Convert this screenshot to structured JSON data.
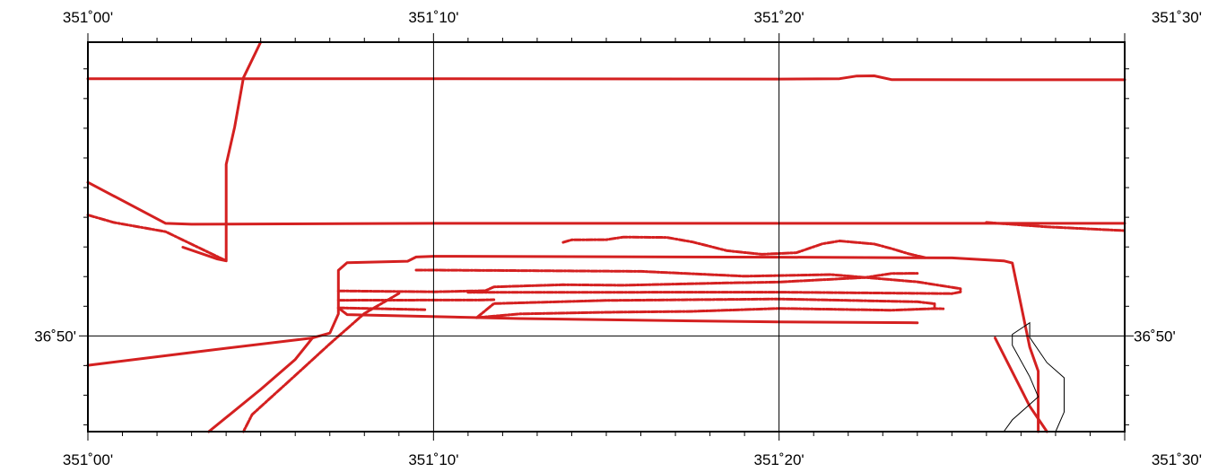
{
  "map": {
    "projection": "mercator",
    "frame_style": "fancy",
    "lon_range": [
      351.0,
      351.5
    ],
    "lat_range": [
      36.7795,
      36.9983
    ],
    "gridlines": {
      "lon": [
        351.1667,
        351.3333
      ],
      "lat": [
        36.8333
      ]
    },
    "top_labels": [
      {
        "lon": 351.0,
        "text": "351˚00'"
      },
      {
        "lon": 351.1667,
        "text": "351˚10'"
      },
      {
        "lon": 351.3333,
        "text": "351˚20'"
      },
      {
        "lon": 351.5,
        "text": "351˚30'"
      }
    ],
    "bottom_labels": [
      {
        "lon": 351.0,
        "text": "351˚00'"
      },
      {
        "lon": 351.1667,
        "text": "351˚10'"
      },
      {
        "lon": 351.3333,
        "text": "351˚20'"
      },
      {
        "lon": 351.5,
        "text": "351˚30'"
      }
    ],
    "left_labels": [
      {
        "lat": 36.8333,
        "text": "36˚50'"
      }
    ],
    "right_labels": [
      {
        "lat": 36.8333,
        "text": "36˚50'"
      }
    ],
    "colors": {
      "track": "#d42020",
      "coastline": "#000000",
      "grid": "#000000",
      "background": "#ffffff"
    },
    "tracks": [
      {
        "style": "solid",
        "points": [
          [
            351.0,
            36.9778
          ],
          [
            351.1667,
            36.9778
          ],
          [
            351.3333,
            36.9776
          ],
          [
            351.3625,
            36.9778
          ],
          [
            351.3708,
            36.9793
          ],
          [
            351.3792,
            36.9794
          ],
          [
            351.3875,
            36.9773
          ],
          [
            351.4375,
            36.9772
          ],
          [
            351.5,
            36.9772
          ]
        ]
      },
      {
        "style": "solid",
        "points": [
          [
            351.0,
            36.9196
          ],
          [
            351.0375,
            36.8966
          ],
          [
            351.05,
            36.8961
          ],
          [
            351.1667,
            36.8966
          ],
          [
            351.3333,
            36.8966
          ],
          [
            351.5,
            36.8966
          ]
        ]
      },
      {
        "style": "solid",
        "points": [
          [
            351.0833,
            36.9983
          ],
          [
            351.075,
            36.9783
          ],
          [
            351.0708,
            36.9508
          ],
          [
            351.0667,
            36.9297
          ],
          [
            351.0667,
            36.8956
          ],
          [
            351.0667,
            36.8755
          ],
          [
            351.0625,
            36.8765
          ],
          [
            351.0458,
            36.8832
          ]
        ]
      },
      {
        "style": "dashed",
        "points": [
          [
            351.0,
            36.9013
          ],
          [
            351.0125,
            36.8971
          ],
          [
            351.0375,
            36.8919
          ],
          [
            351.0667,
            36.8755
          ]
        ]
      },
      {
        "style": "dashed",
        "points": [
          [
            351.4333,
            36.8971
          ],
          [
            351.4625,
            36.8946
          ],
          [
            351.5,
            36.8925
          ]
        ]
      },
      {
        "style": "solid",
        "points": [
          [
            351.0,
            36.8168
          ],
          [
            351.0542,
            36.8246
          ],
          [
            351.1083,
            36.8322
          ],
          [
            351.1167,
            36.8349
          ],
          [
            351.1208,
            36.8457
          ],
          [
            351.1208,
            36.8702
          ],
          [
            351.125,
            36.8745
          ],
          [
            351.1542,
            36.8753
          ],
          [
            351.1583,
            36.8777
          ],
          [
            351.1667,
            36.8781
          ],
          [
            351.3333,
            36.8776
          ],
          [
            351.4167,
            36.8772
          ],
          [
            351.4417,
            36.8755
          ],
          [
            351.4458,
            36.8743
          ],
          [
            351.4542,
            36.8271
          ],
          [
            351.4583,
            36.8135
          ],
          [
            351.4583,
            36.7795
          ]
        ]
      },
      {
        "style": "dashed",
        "points": [
          [
            351.1583,
            36.8703
          ],
          [
            351.1667,
            36.8703
          ],
          [
            351.2667,
            36.8696
          ],
          [
            351.3167,
            36.8669
          ],
          [
            351.3583,
            36.8678
          ],
          [
            351.4,
            36.8637
          ],
          [
            351.4208,
            36.8599
          ],
          [
            351.4208,
            36.858
          ],
          [
            351.4167,
            36.8571
          ],
          [
            351.3333,
            36.8579
          ],
          [
            351.1833,
            36.8578
          ]
        ]
      },
      {
        "style": "dashed",
        "points": [
          [
            351.1208,
            36.8586
          ],
          [
            351.1667,
            36.8581
          ],
          [
            351.1917,
            36.8587
          ],
          [
            351.1958,
            36.8609
          ],
          [
            351.2292,
            36.8621
          ],
          [
            351.2583,
            36.8618
          ],
          [
            351.3083,
            36.8631
          ],
          [
            351.3333,
            36.8636
          ],
          [
            351.375,
            36.8662
          ],
          [
            351.3875,
            36.8684
          ],
          [
            351.4,
            36.8685
          ]
        ]
      },
      {
        "style": "dashed",
        "points": [
          [
            351.1208,
            36.8534
          ],
          [
            351.1667,
            36.8535
          ],
          [
            351.1875,
            36.8535
          ],
          [
            351.1958,
            36.8537
          ]
        ]
      },
      {
        "style": "dashed",
        "points": [
          [
            351.1208,
            36.8491
          ],
          [
            351.1417,
            36.8486
          ],
          [
            351.1625,
            36.8481
          ]
        ]
      },
      {
        "style": "dashed",
        "points": [
          [
            351.1875,
            36.8436
          ],
          [
            351.2083,
            36.8457
          ],
          [
            351.25,
            36.8466
          ],
          [
            351.2917,
            36.8471
          ],
          [
            351.3333,
            36.8488
          ],
          [
            351.3875,
            36.8478
          ],
          [
            351.4083,
            36.8487
          ],
          [
            351.4125,
            36.8486
          ]
        ]
      },
      {
        "style": "dashed",
        "points": [
          [
            351.1875,
            36.8436
          ],
          [
            351.1958,
            36.8515
          ],
          [
            351.25,
            36.8533
          ],
          [
            351.3333,
            36.8541
          ],
          [
            351.4,
            36.8525
          ],
          [
            351.4083,
            36.8514
          ],
          [
            351.4083,
            36.8495
          ]
        ]
      },
      {
        "style": "solid",
        "points": [
          [
            351.1208,
            36.8491
          ],
          [
            351.125,
            36.8453
          ],
          [
            351.2083,
            36.8431
          ],
          [
            351.2917,
            36.8418
          ],
          [
            351.3333,
            36.8412
          ],
          [
            351.4,
            36.8407
          ]
        ]
      },
      {
        "style": "dashed",
        "points": [
          [
            351.2292,
            36.8859
          ],
          [
            351.2333,
            36.8873
          ],
          [
            351.25,
            36.8874
          ],
          [
            351.2583,
            36.8889
          ],
          [
            351.2792,
            36.8887
          ],
          [
            351.2917,
            36.8861
          ],
          [
            351.3083,
            36.8812
          ],
          [
            351.325,
            36.8792
          ],
          [
            351.3417,
            36.8801
          ],
          [
            351.3542,
            36.8851
          ],
          [
            351.3625,
            36.8867
          ],
          [
            351.3792,
            36.885
          ],
          [
            351.3875,
            36.8824
          ],
          [
            351.3958,
            36.8795
          ],
          [
            351.4042,
            36.8772
          ]
        ]
      },
      {
        "style": "dashed",
        "points": [
          [
            351.15,
            36.8572
          ],
          [
            351.1333,
            36.8459
          ],
          [
            351.1167,
            36.8289
          ],
          [
            351.1,
            36.8111
          ],
          [
            351.0792,
            36.7891
          ],
          [
            351.075,
            36.7795
          ]
        ]
      },
      {
        "style": "solid",
        "points": [
          [
            351.1083,
            36.8322
          ],
          [
            351.1,
            36.8201
          ],
          [
            351.0833,
            36.8032
          ],
          [
            351.0583,
            36.7795
          ]
        ]
      },
      {
        "style": "solid",
        "points": [
          [
            351.4375,
            36.8322
          ],
          [
            351.4542,
            36.7938
          ],
          [
            351.4625,
            36.7795
          ]
        ]
      }
    ],
    "coastlines": [
      {
        "points": [
          [
            351.4417,
            36.7795
          ],
          [
            351.4458,
            36.7861
          ],
          [
            351.4583,
            36.7991
          ],
          [
            351.4542,
            36.8104
          ],
          [
            351.4458,
            36.8281
          ],
          [
            351.4458,
            36.8342
          ],
          [
            351.4542,
            36.8407
          ],
          [
            351.4542,
            36.8325
          ],
          [
            351.4625,
            36.8183
          ],
          [
            351.4708,
            36.8098
          ],
          [
            351.4708,
            36.7905
          ],
          [
            351.4667,
            36.7795
          ]
        ]
      }
    ]
  }
}
